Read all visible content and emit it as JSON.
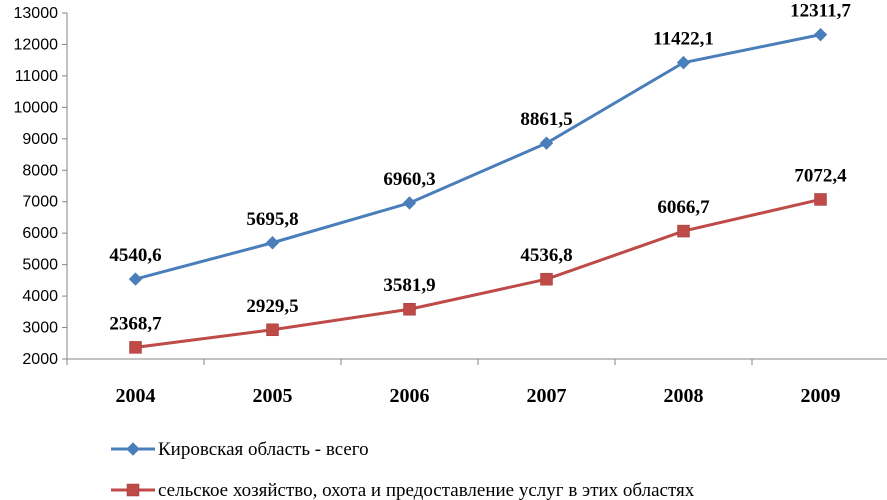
{
  "chart_data": {
    "type": "line",
    "categories": [
      "2004",
      "2005",
      "2006",
      "2007",
      "2008",
      "2009"
    ],
    "series": [
      {
        "name": "Кировская область - всего",
        "values": [
          4540.6,
          5695.8,
          6960.3,
          8861.5,
          11422.1,
          12311.7
        ],
        "labels": [
          "4540,6",
          "5695,8",
          "6960,3",
          "8861,5",
          "11422,1",
          "12311,7"
        ],
        "color": "#4a7ebb",
        "marker": "diamond"
      },
      {
        "name": "сельское хозяйство, охота и предоставление услуг в этих областях",
        "values": [
          2368.7,
          2929.5,
          3581.9,
          4536.8,
          6066.7,
          7072.4
        ],
        "labels": [
          "2368,7",
          "2929,5",
          "3581,9",
          "4536,8",
          "6066,7",
          "7072,4"
        ],
        "color": "#be4b48",
        "marker": "square"
      }
    ],
    "ylim": [
      2000,
      13000
    ],
    "yticks": [
      "2000",
      "3000",
      "4000",
      "5000",
      "6000",
      "7000",
      "8000",
      "9000",
      "10000",
      "11000",
      "12000",
      "13000"
    ],
    "grid": false,
    "legend_position": "bottom"
  }
}
